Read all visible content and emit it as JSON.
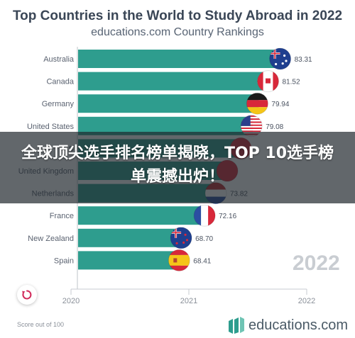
{
  "header": {
    "title": "Top Countries in the World to Study Abroad in 2022",
    "subtitle": "educations.com Country Rankings"
  },
  "overlay": {
    "text": "全球顶尖选手排名榜单揭晓，TOP 10选手榜单震撼出炉！"
  },
  "chart_data": {
    "type": "bar",
    "orientation": "horizontal",
    "categories": [
      "Australia",
      "Canada",
      "Germany",
      "United States",
      "Switzerland",
      "United Kingdom",
      "Netherlands",
      "France",
      "New Zealand",
      "Spain"
    ],
    "values": [
      83.31,
      81.52,
      79.94,
      79.08,
      77.5,
      75.5,
      73.82,
      72.16,
      68.7,
      68.41
    ],
    "value_labels": [
      "83.31",
      "81.52",
      "79.94",
      "79.08",
      "",
      "",
      "73.82",
      "72.16",
      "68.70",
      "68.41"
    ],
    "visible_category_labels": [
      "Australia",
      "Canada",
      "Germany",
      "United States",
      "S",
      "United Kingdom",
      "Netherlands",
      "France",
      "New Zealand",
      "Spain"
    ],
    "bar_color": "#2e9d8e",
    "x_ticks": [
      "2020",
      "2021",
      "2022"
    ],
    "current_year": "2022",
    "xlabel": "",
    "ylabel": ""
  },
  "footer": {
    "score_note": "Score out of 100",
    "brand": "educations.com",
    "replay_icon": "replay-icon"
  }
}
